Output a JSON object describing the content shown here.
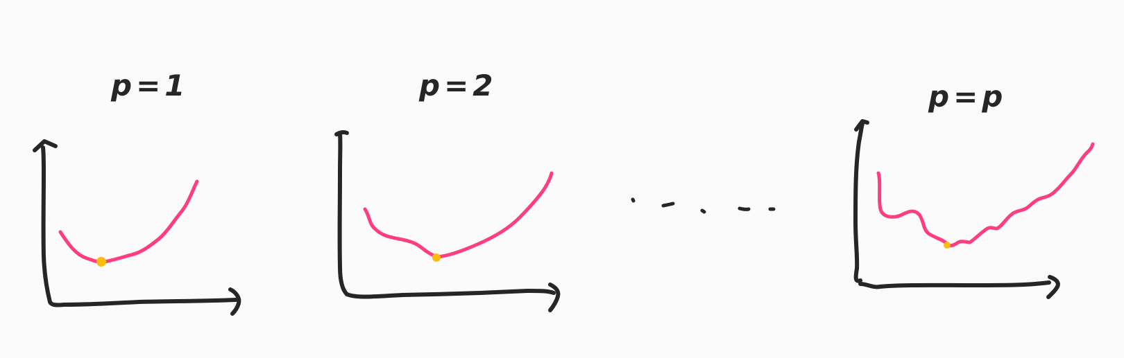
{
  "colors": {
    "background": "#fbfbfb",
    "ink": "#262626",
    "curve": "#ff3d7f",
    "minimum_point": "#fdbb10"
  },
  "panels": [
    {
      "title": "p=1"
    },
    {
      "title": "p=2"
    },
    {
      "title": "p=p"
    }
  ],
  "ellipsis_icon": "dashed-ellipsis"
}
